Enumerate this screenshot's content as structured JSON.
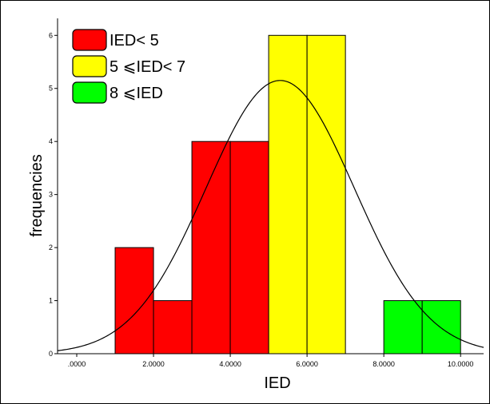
{
  "chart_data": {
    "type": "bar",
    "xlabel": "IED",
    "ylabel": "frequencies",
    "xlim": [
      -0.5,
      10.6
    ],
    "ylim": [
      0,
      6.2
    ],
    "x_ticks": [
      {
        "value": 0,
        "label": ".0000"
      },
      {
        "value": 2,
        "label": "2.0000"
      },
      {
        "value": 4,
        "label": "4.0000"
      },
      {
        "value": 6,
        "label": "6.0000"
      },
      {
        "value": 8,
        "label": "8.0000"
      },
      {
        "value": 10,
        "label": "10.0000"
      }
    ],
    "y_ticks": [
      {
        "value": 0,
        "label": "0"
      },
      {
        "value": 1,
        "label": "1"
      },
      {
        "value": 2,
        "label": "2"
      },
      {
        "value": 3,
        "label": "3"
      },
      {
        "value": 4,
        "label": "4"
      },
      {
        "value": 5,
        "label": "5"
      },
      {
        "value": 6,
        "label": "6"
      }
    ],
    "bins": [
      {
        "x0": 1,
        "x1": 2,
        "value": 2,
        "group": "low"
      },
      {
        "x0": 2,
        "x1": 3,
        "value": 1,
        "group": "low"
      },
      {
        "x0": 3,
        "x1": 4,
        "value": 4,
        "group": "low"
      },
      {
        "x0": 4,
        "x1": 5,
        "value": 4,
        "group": "low"
      },
      {
        "x0": 5,
        "x1": 6,
        "value": 6,
        "group": "mid"
      },
      {
        "x0": 6,
        "x1": 7,
        "value": 6,
        "group": "mid"
      },
      {
        "x0": 8,
        "x1": 9,
        "value": 1,
        "group": "high"
      },
      {
        "x0": 9,
        "x1": 10,
        "value": 1,
        "group": "high"
      }
    ],
    "normal_curve": {
      "mean": 5.3,
      "sd": 1.93,
      "peak": 5.15
    },
    "legend": [
      {
        "key": "low",
        "label": "IED< 5",
        "color": "#ff0000"
      },
      {
        "key": "mid",
        "label": "5 ⩽IED< 7",
        "color": "#ffff00"
      },
      {
        "key": "high",
        "label": "8 ⩽IED",
        "color": "#00ff00"
      }
    ],
    "legend_position": "top-left",
    "grid": false
  }
}
